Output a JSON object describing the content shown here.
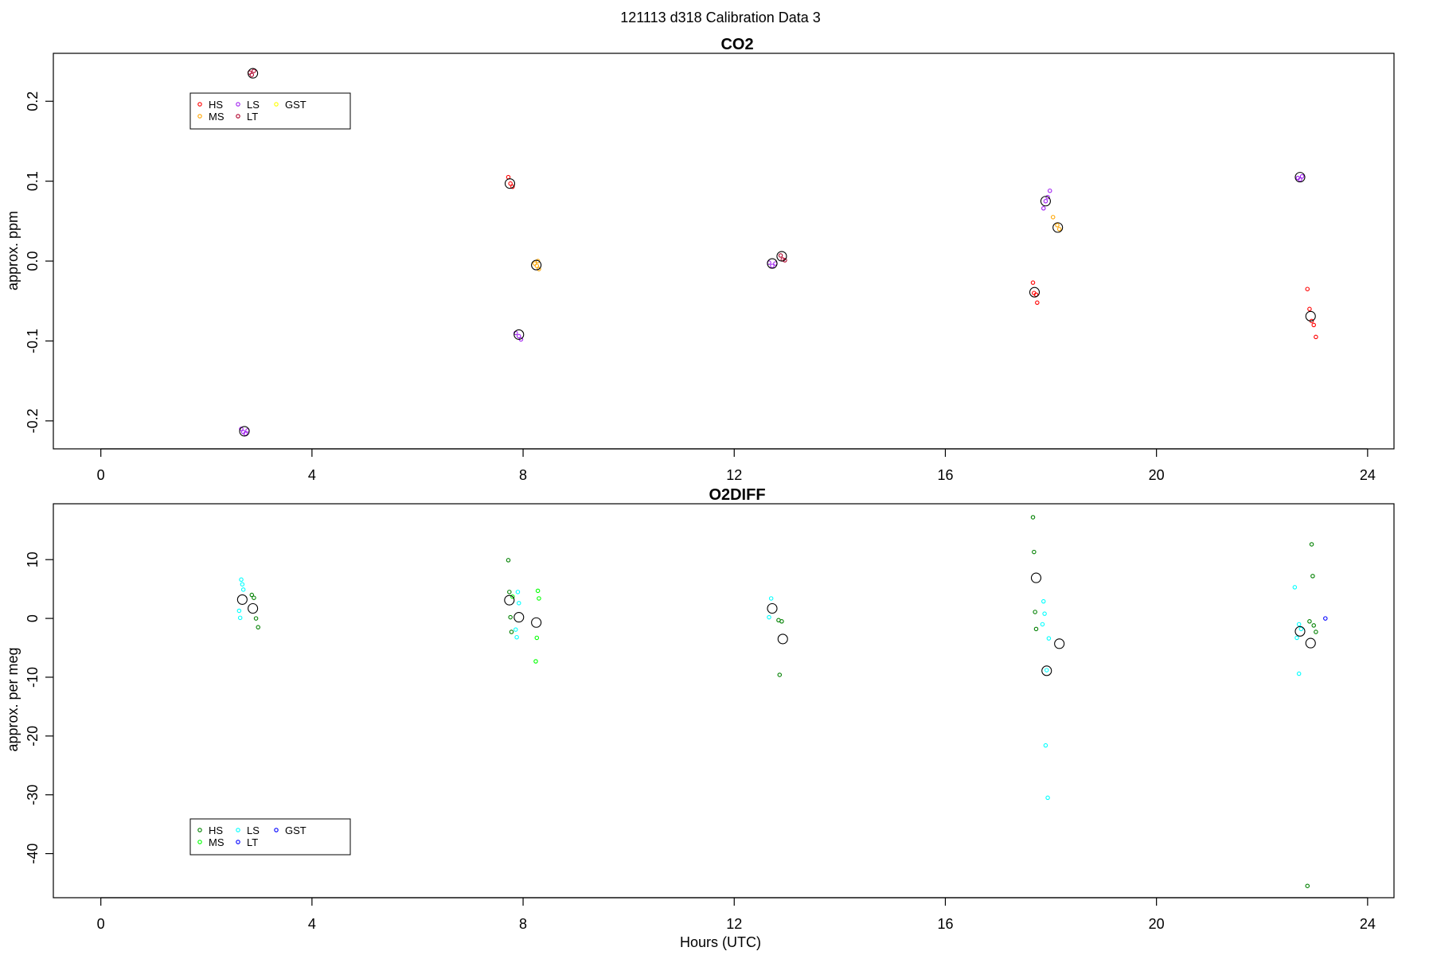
{
  "figure": {
    "supertitle": "121113   d318   Calibration Data 3",
    "xlabel": "Hours (UTC)"
  },
  "chart_data": [
    {
      "type": "scatter",
      "title": "CO2",
      "xlabel": "",
      "ylabel": "approx. ppm",
      "xlim": [
        -0.9,
        24.5
      ],
      "ylim": [
        -0.235,
        0.26
      ],
      "xticks": [
        0,
        4,
        8,
        12,
        16,
        20,
        24
      ],
      "yticks": [
        -0.2,
        -0.1,
        0.0,
        0.1,
        0.2
      ],
      "ytick_labels": [
        "-0.2",
        "-0.1",
        "0.0",
        "0.1",
        "0.2"
      ],
      "legend_position": "top-left",
      "series": [
        {
          "name": "HS",
          "color": "#ff0000",
          "points": [
            [
              7.72,
              0.105
            ],
            [
              7.76,
              0.097
            ],
            [
              7.8,
              0.093
            ],
            [
              17.66,
              -0.027
            ],
            [
              17.68,
              -0.04
            ],
            [
              17.72,
              -0.042
            ],
            [
              17.74,
              -0.052
            ],
            [
              22.86,
              -0.035
            ],
            [
              22.9,
              -0.06
            ],
            [
              22.94,
              -0.075
            ],
            [
              22.98,
              -0.08
            ],
            [
              23.02,
              -0.095
            ]
          ]
        },
        {
          "name": "MS",
          "color": "#ffa500",
          "points": [
            [
              8.22,
              -0.003
            ],
            [
              8.26,
              -0.006
            ],
            [
              8.3,
              -0.01
            ],
            [
              8.28,
              0.0
            ],
            [
              18.04,
              0.055
            ],
            [
              18.12,
              0.045
            ],
            [
              18.16,
              0.04
            ]
          ]
        },
        {
          "name": "LS",
          "color": "#a020f0",
          "points": [
            [
              2.66,
              -0.21
            ],
            [
              2.7,
              -0.214
            ],
            [
              2.74,
              -0.216
            ],
            [
              2.78,
              -0.212
            ],
            [
              7.86,
              -0.09
            ],
            [
              7.92,
              -0.094
            ],
            [
              7.96,
              -0.098
            ],
            [
              12.66,
              -0.002
            ],
            [
              12.72,
              -0.006
            ],
            [
              12.78,
              -0.003
            ],
            [
              17.86,
              0.066
            ],
            [
              17.9,
              0.075
            ],
            [
              17.94,
              0.08
            ],
            [
              17.98,
              0.088
            ],
            [
              22.68,
              0.104
            ],
            [
              22.76,
              0.106
            ],
            [
              22.72,
              0.102
            ]
          ]
        },
        {
          "name": "LT",
          "color": "#b0002a",
          "points": [
            [
              2.82,
              0.236
            ],
            [
              2.86,
              0.233
            ],
            [
              2.9,
              0.238
            ],
            [
              12.88,
              0.007
            ],
            [
              12.92,
              0.002
            ],
            [
              12.96,
              0.001
            ]
          ]
        },
        {
          "name": "GST",
          "color": "#ffff00",
          "points": []
        }
      ],
      "means": [
        [
          2.88,
          0.235
        ],
        [
          7.75,
          0.097
        ],
        [
          8.25,
          -0.005
        ],
        [
          2.72,
          -0.213
        ],
        [
          7.92,
          -0.092
        ],
        [
          12.72,
          -0.003
        ],
        [
          12.9,
          0.006
        ],
        [
          17.69,
          -0.039
        ],
        [
          18.13,
          0.042
        ],
        [
          17.9,
          0.075
        ],
        [
          22.72,
          0.105
        ],
        [
          22.92,
          -0.069
        ]
      ]
    },
    {
      "type": "scatter",
      "title": "O2DIFF",
      "xlabel": "Hours (UTC)",
      "ylabel": "approx. per meg",
      "xlim": [
        -0.9,
        24.5
      ],
      "ylim": [
        -47.5,
        19.5
      ],
      "xticks": [
        0,
        4,
        8,
        12,
        16,
        20,
        24
      ],
      "yticks": [
        -40,
        -30,
        -20,
        -10,
        0,
        10
      ],
      "ytick_labels": [
        "-40",
        "-30",
        "-20",
        "-10",
        "0",
        "10"
      ],
      "legend_position": "bottom-left",
      "series": [
        {
          "name": "HS",
          "color": "#008000",
          "points": [
            [
              2.86,
              4.0
            ],
            [
              2.9,
              3.5
            ],
            [
              2.94,
              0.0
            ],
            [
              2.98,
              -1.5
            ],
            [
              7.72,
              9.9
            ],
            [
              7.74,
              4.5
            ],
            [
              7.76,
              0.2
            ],
            [
              7.78,
              -2.3
            ],
            [
              12.84,
              -0.3
            ],
            [
              12.9,
              -0.5
            ],
            [
              12.86,
              -9.6
            ],
            [
              17.66,
              17.2
            ],
            [
              17.68,
              11.3
            ],
            [
              17.7,
              1.1
            ],
            [
              17.72,
              -1.8
            ],
            [
              22.94,
              12.6
            ],
            [
              22.96,
              7.2
            ],
            [
              22.9,
              -0.5
            ],
            [
              22.98,
              -1.2
            ],
            [
              23.02,
              -2.3
            ],
            [
              22.86,
              -45.5
            ]
          ]
        },
        {
          "name": "MS",
          "color": "#00ff00",
          "points": [
            [
              7.8,
              3.7
            ],
            [
              8.28,
              4.7
            ],
            [
              8.3,
              3.4
            ],
            [
              8.26,
              -3.3
            ],
            [
              8.24,
              -7.3
            ]
          ]
        },
        {
          "name": "LS",
          "color": "#00ffff",
          "points": [
            [
              2.66,
              6.6
            ],
            [
              2.68,
              5.8
            ],
            [
              2.7,
              4.9
            ],
            [
              2.62,
              1.3
            ],
            [
              2.64,
              0.1
            ],
            [
              7.9,
              4.5
            ],
            [
              7.92,
              2.6
            ],
            [
              7.86,
              -1.9
            ],
            [
              7.88,
              -3.2
            ],
            [
              12.7,
              3.4
            ],
            [
              12.66,
              0.2
            ],
            [
              17.86,
              2.9
            ],
            [
              17.88,
              0.8
            ],
            [
              17.84,
              -1.0
            ],
            [
              17.96,
              -3.4
            ],
            [
              17.92,
              -8.8
            ],
            [
              17.9,
              -21.6
            ],
            [
              17.94,
              -30.5
            ],
            [
              22.62,
              5.3
            ],
            [
              22.7,
              -1.0
            ],
            [
              22.74,
              -1.8
            ],
            [
              22.66,
              -3.3
            ],
            [
              22.7,
              -9.4
            ]
          ]
        },
        {
          "name": "LT",
          "color": "#0000ff",
          "points": [
            [
              23.2,
              0.0
            ]
          ]
        },
        {
          "name": "GST",
          "color": "#0000ff",
          "points": []
        }
      ],
      "means": [
        [
          2.68,
          3.2
        ],
        [
          2.88,
          1.7
        ],
        [
          7.74,
          3.1
        ],
        [
          7.92,
          0.2
        ],
        [
          8.25,
          -0.7
        ],
        [
          12.72,
          1.7
        ],
        [
          12.92,
          -3.5
        ],
        [
          17.72,
          6.9
        ],
        [
          17.92,
          -8.9
        ],
        [
          18.16,
          -4.3
        ],
        [
          22.72,
          -2.2
        ],
        [
          22.92,
          -4.2
        ]
      ]
    }
  ]
}
